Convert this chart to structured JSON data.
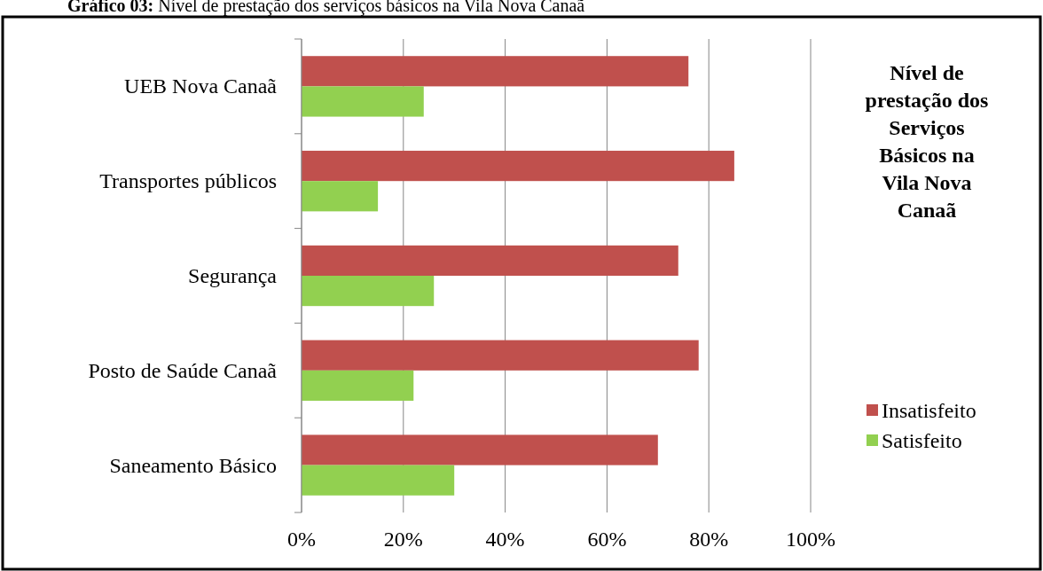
{
  "chart_data": {
    "type": "bar",
    "orientation": "horizontal",
    "title": "Nível de prestação dos Serviços Básicos na Vila Nova Canaã",
    "annotations": [
      "Gráfico 03: Nível de prestação dos serviços básicos na Vila Nova Canaã"
    ],
    "categories": [
      "UEB Nova Canaã",
      "Transportes públicos",
      "Segurança",
      "Posto de Saúde Canaã",
      "Saneamento Básico"
    ],
    "series": [
      {
        "name": "Insatisfeito",
        "color": "#c0504d",
        "values": [
          76,
          85,
          74,
          78,
          70
        ]
      },
      {
        "name": "Satisfeito",
        "color": "#92d050",
        "values": [
          24,
          15,
          26,
          22,
          30
        ]
      }
    ],
    "xlim": [
      0,
      100
    ],
    "xticks": [
      {
        "value": 0,
        "label": "0%"
      },
      {
        "value": 20,
        "label": "20%"
      },
      {
        "value": 40,
        "label": "40%"
      },
      {
        "value": 60,
        "label": "60%"
      },
      {
        "value": 80,
        "label": "80%"
      },
      {
        "value": 100,
        "label": "100%"
      }
    ],
    "grid": "x",
    "legend": "right"
  }
}
